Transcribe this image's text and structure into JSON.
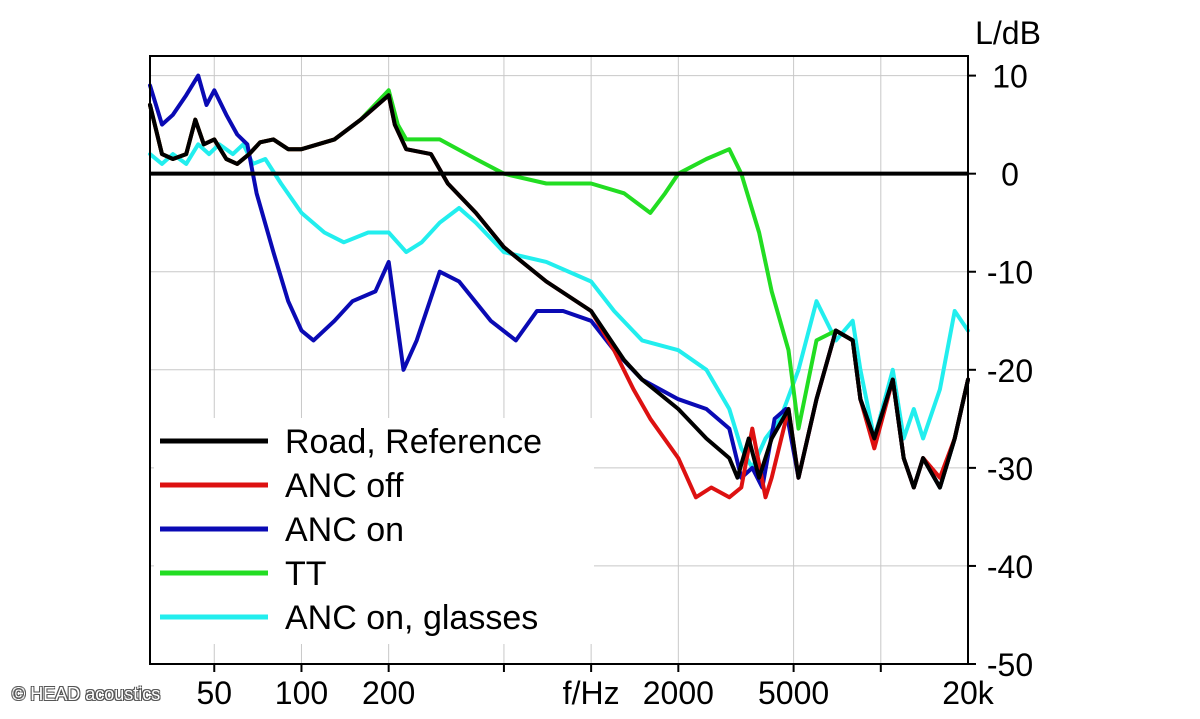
{
  "chart_data": {
    "type": "line",
    "title": "",
    "xlabel": "f/Hz",
    "ylabel": "L/dB",
    "x_scale": "log",
    "xlim": [
      30,
      20000
    ],
    "ylim": [
      -50,
      12
    ],
    "grid": true,
    "legend_position": "bottom-left",
    "x_tick_labels": [
      {
        "value": 50,
        "label": "50"
      },
      {
        "value": 100,
        "label": "100"
      },
      {
        "value": 200,
        "label": "200"
      },
      {
        "value": 2000,
        "label": "2000"
      },
      {
        "value": 5000,
        "label": "5000"
      },
      {
        "value": 20000,
        "label": "20k"
      }
    ],
    "x_axis_label_value": 1000,
    "y_ticks": [
      10,
      0,
      -10,
      -20,
      -30,
      -40,
      -50
    ],
    "reference_line": 0,
    "series": [
      {
        "name": "Road, Reference",
        "color": "#000000",
        "points": [
          [
            30,
            7
          ],
          [
            33,
            2
          ],
          [
            36,
            1.5
          ],
          [
            40,
            2
          ],
          [
            43,
            5.5
          ],
          [
            46,
            3
          ],
          [
            50,
            3.5
          ],
          [
            55,
            1.5
          ],
          [
            60,
            1
          ],
          [
            66,
            2
          ],
          [
            72,
            3.2
          ],
          [
            80,
            3.5
          ],
          [
            90,
            2.5
          ],
          [
            100,
            2.5
          ],
          [
            130,
            3.5
          ],
          [
            160,
            5.5
          ],
          [
            200,
            8
          ],
          [
            210,
            5
          ],
          [
            230,
            2.5
          ],
          [
            280,
            2
          ],
          [
            320,
            -1
          ],
          [
            400,
            -4
          ],
          [
            500,
            -7.5
          ],
          [
            700,
            -11
          ],
          [
            1000,
            -14
          ],
          [
            1300,
            -19
          ],
          [
            1500,
            -21
          ],
          [
            2000,
            -24
          ],
          [
            2500,
            -27
          ],
          [
            3000,
            -29
          ],
          [
            3200,
            -31
          ],
          [
            3500,
            -27
          ],
          [
            3800,
            -31
          ],
          [
            4200,
            -27
          ],
          [
            4800,
            -24
          ],
          [
            5200,
            -31
          ],
          [
            6000,
            -23
          ],
          [
            7000,
            -16
          ],
          [
            8000,
            -17
          ],
          [
            8500,
            -23
          ],
          [
            9500,
            -27
          ],
          [
            11000,
            -21
          ],
          [
            12000,
            -29
          ],
          [
            13000,
            -32
          ],
          [
            14000,
            -29
          ],
          [
            16000,
            -32
          ],
          [
            18000,
            -27
          ],
          [
            20000,
            -21
          ]
        ]
      },
      {
        "name": "ANC off",
        "color": "#dd1111",
        "points": [
          [
            30,
            7
          ],
          [
            33,
            2
          ],
          [
            36,
            1.5
          ],
          [
            40,
            2
          ],
          [
            43,
            5.5
          ],
          [
            46,
            3
          ],
          [
            50,
            3.5
          ],
          [
            55,
            1.5
          ],
          [
            60,
            1
          ],
          [
            66,
            2
          ],
          [
            72,
            3.2
          ],
          [
            80,
            3.5
          ],
          [
            90,
            2.5
          ],
          [
            100,
            2.5
          ],
          [
            130,
            3.5
          ],
          [
            160,
            5.5
          ],
          [
            200,
            8
          ],
          [
            210,
            5
          ],
          [
            230,
            2.5
          ],
          [
            280,
            2
          ],
          [
            320,
            -1
          ],
          [
            400,
            -4
          ],
          [
            500,
            -7.5
          ],
          [
            700,
            -11
          ],
          [
            1000,
            -14
          ],
          [
            1200,
            -18
          ],
          [
            1400,
            -22
          ],
          [
            1600,
            -25
          ],
          [
            2000,
            -29
          ],
          [
            2300,
            -33
          ],
          [
            2600,
            -32
          ],
          [
            3000,
            -33
          ],
          [
            3300,
            -32
          ],
          [
            3600,
            -26
          ],
          [
            4000,
            -33
          ],
          [
            4200,
            -31
          ],
          [
            4800,
            -24
          ],
          [
            5200,
            -31
          ],
          [
            6000,
            -23
          ],
          [
            7000,
            -16
          ],
          [
            8000,
            -17
          ],
          [
            8500,
            -23
          ],
          [
            9500,
            -28
          ],
          [
            11000,
            -21
          ],
          [
            12000,
            -29
          ],
          [
            13000,
            -32
          ],
          [
            14000,
            -29
          ],
          [
            16000,
            -31
          ],
          [
            18000,
            -27
          ],
          [
            20000,
            -21
          ]
        ]
      },
      {
        "name": "ANC on",
        "color": "#0a0ab4",
        "points": [
          [
            30,
            9
          ],
          [
            33,
            5
          ],
          [
            36,
            6
          ],
          [
            40,
            8
          ],
          [
            44,
            10
          ],
          [
            47,
            7
          ],
          [
            50,
            8.5
          ],
          [
            55,
            6
          ],
          [
            60,
            4
          ],
          [
            65,
            3
          ],
          [
            70,
            -2
          ],
          [
            80,
            -8
          ],
          [
            90,
            -13
          ],
          [
            100,
            -16
          ],
          [
            110,
            -17
          ],
          [
            130,
            -15
          ],
          [
            150,
            -13
          ],
          [
            180,
            -12
          ],
          [
            200,
            -9
          ],
          [
            225,
            -20
          ],
          [
            250,
            -17
          ],
          [
            300,
            -10
          ],
          [
            350,
            -11
          ],
          [
            450,
            -15
          ],
          [
            550,
            -17
          ],
          [
            650,
            -14
          ],
          [
            800,
            -14
          ],
          [
            1000,
            -15
          ],
          [
            1200,
            -18
          ],
          [
            1500,
            -21
          ],
          [
            2000,
            -23
          ],
          [
            2500,
            -24
          ],
          [
            3000,
            -26
          ],
          [
            3300,
            -31
          ],
          [
            3600,
            -30
          ],
          [
            3900,
            -32
          ],
          [
            4300,
            -25
          ],
          [
            4700,
            -24
          ],
          [
            5200,
            -31
          ],
          [
            6000,
            -23
          ],
          [
            7000,
            -16
          ],
          [
            8000,
            -17
          ],
          [
            8500,
            -23
          ],
          [
            9500,
            -27
          ],
          [
            11000,
            -21
          ],
          [
            12000,
            -29
          ],
          [
            13000,
            -32
          ],
          [
            14000,
            -29
          ],
          [
            16000,
            -32
          ],
          [
            18000,
            -27
          ],
          [
            20000,
            -21
          ]
        ]
      },
      {
        "name": "TT",
        "color": "#22dd22",
        "points": [
          [
            30,
            7
          ],
          [
            33,
            2
          ],
          [
            36,
            1.5
          ],
          [
            40,
            2
          ],
          [
            43,
            5.5
          ],
          [
            46,
            3
          ],
          [
            50,
            3.5
          ],
          [
            55,
            1.5
          ],
          [
            60,
            1
          ],
          [
            66,
            2
          ],
          [
            72,
            3.2
          ],
          [
            80,
            3.5
          ],
          [
            90,
            2.5
          ],
          [
            100,
            2.5
          ],
          [
            130,
            3.5
          ],
          [
            160,
            5.5
          ],
          [
            200,
            8.5
          ],
          [
            215,
            5
          ],
          [
            230,
            3.5
          ],
          [
            300,
            3.5
          ],
          [
            400,
            1.5
          ],
          [
            500,
            0
          ],
          [
            700,
            -1
          ],
          [
            1000,
            -1
          ],
          [
            1300,
            -2
          ],
          [
            1600,
            -4
          ],
          [
            1800,
            -2
          ],
          [
            2000,
            0
          ],
          [
            2500,
            1.5
          ],
          [
            3000,
            2.5
          ],
          [
            3300,
            0
          ],
          [
            3800,
            -6
          ],
          [
            4200,
            -12
          ],
          [
            4800,
            -18
          ],
          [
            5200,
            -26
          ],
          [
            6000,
            -17
          ],
          [
            7000,
            -16
          ],
          [
            8000,
            -17
          ],
          [
            8500,
            -23
          ],
          [
            9500,
            -27
          ],
          [
            11000,
            -21
          ],
          [
            12000,
            -29
          ],
          [
            13000,
            -32
          ],
          [
            14000,
            -29
          ],
          [
            16000,
            -32
          ],
          [
            18000,
            -27
          ],
          [
            20000,
            -21
          ]
        ]
      },
      {
        "name": "ANC on, glasses",
        "color": "#22eeee",
        "points": [
          [
            30,
            2
          ],
          [
            33,
            1
          ],
          [
            36,
            2
          ],
          [
            40,
            1
          ],
          [
            44,
            3
          ],
          [
            48,
            2
          ],
          [
            52,
            3
          ],
          [
            58,
            2
          ],
          [
            63,
            3
          ],
          [
            68,
            1
          ],
          [
            75,
            1.5
          ],
          [
            85,
            -1
          ],
          [
            100,
            -4
          ],
          [
            120,
            -6
          ],
          [
            140,
            -7
          ],
          [
            170,
            -6
          ],
          [
            200,
            -6
          ],
          [
            230,
            -8
          ],
          [
            260,
            -7
          ],
          [
            300,
            -5
          ],
          [
            350,
            -3.5
          ],
          [
            400,
            -5
          ],
          [
            500,
            -8
          ],
          [
            700,
            -9
          ],
          [
            1000,
            -11
          ],
          [
            1200,
            -14
          ],
          [
            1500,
            -17
          ],
          [
            2000,
            -18
          ],
          [
            2500,
            -20
          ],
          [
            3000,
            -24
          ],
          [
            3300,
            -28
          ],
          [
            3600,
            -30
          ],
          [
            4000,
            -27
          ],
          [
            4500,
            -25
          ],
          [
            5200,
            -20
          ],
          [
            6000,
            -13
          ],
          [
            7000,
            -17
          ],
          [
            8000,
            -15
          ],
          [
            8500,
            -20
          ],
          [
            9500,
            -27
          ],
          [
            11000,
            -20
          ],
          [
            12000,
            -27
          ],
          [
            13000,
            -24
          ],
          [
            14000,
            -27
          ],
          [
            16000,
            -22
          ],
          [
            18000,
            -14
          ],
          [
            20000,
            -16
          ]
        ]
      }
    ]
  },
  "credit": "© HEAD acoustics"
}
